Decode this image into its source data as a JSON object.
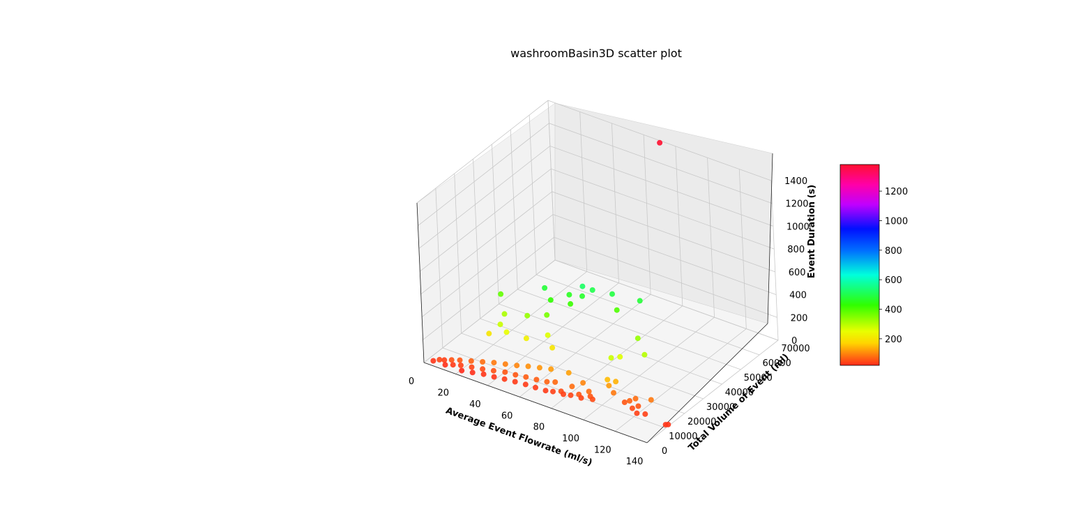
{
  "chart_data": {
    "type": "scatter",
    "projection": "3d",
    "title": "washroomBasin3D scatter plot",
    "xlabel": "Average Event Flowrate (ml/s)",
    "ylabel": "Total Volume of Event (ml)",
    "zlabel": "Event Duration (s)",
    "xlim": [
      0,
      140
    ],
    "ylim": [
      0,
      70000
    ],
    "zlim": [
      0,
      1400
    ],
    "xticks": [
      "0",
      "20",
      "40",
      "60",
      "80",
      "100",
      "120",
      "140"
    ],
    "yticks": [
      "0",
      "10000",
      "20000",
      "30000",
      "40000",
      "50000",
      "60000",
      "70000"
    ],
    "zticks": [
      "0",
      "200",
      "400",
      "600",
      "800",
      "1000",
      "1200",
      "1400"
    ],
    "grid": true,
    "colormap": "hsv",
    "colorbar": {
      "ticks": [
        "200",
        "400",
        "600",
        "800",
        "1000",
        "1200"
      ],
      "range": [
        20,
        1380
      ],
      "colors": [
        "#ff2a1a",
        "#ffd400",
        "#e8ff00",
        "#30ff00",
        "#00ffdc",
        "#0070ff",
        "#0010ff",
        "#c000ff",
        "#ff00a8",
        "#ff1030"
      ]
    },
    "series": [
      {
        "points": [
          {
            "x": 5,
            "y": 800,
            "z": 30
          },
          {
            "x": 8,
            "y": 1600,
            "z": 45
          },
          {
            "x": 10,
            "y": 2500,
            "z": 40
          },
          {
            "x": 12,
            "y": 1200,
            "z": 25
          },
          {
            "x": 14,
            "y": 3000,
            "z": 55
          },
          {
            "x": 16,
            "y": 2000,
            "z": 35
          },
          {
            "x": 18,
            "y": 4000,
            "z": 60
          },
          {
            "x": 20,
            "y": 2800,
            "z": 40
          },
          {
            "x": 22,
            "y": 1500,
            "z": 20
          },
          {
            "x": 24,
            "y": 5000,
            "z": 70
          },
          {
            "x": 26,
            "y": 3500,
            "z": 45
          },
          {
            "x": 28,
            "y": 2200,
            "z": 25
          },
          {
            "x": 30,
            "y": 6000,
            "z": 80
          },
          {
            "x": 32,
            "y": 4200,
            "z": 50
          },
          {
            "x": 34,
            "y": 3000,
            "z": 30
          },
          {
            "x": 36,
            "y": 7000,
            "z": 90
          },
          {
            "x": 38,
            "y": 5000,
            "z": 55
          },
          {
            "x": 40,
            "y": 3500,
            "z": 30
          },
          {
            "x": 42,
            "y": 8000,
            "z": 95
          },
          {
            "x": 44,
            "y": 6000,
            "z": 60
          },
          {
            "x": 46,
            "y": 4000,
            "z": 35
          },
          {
            "x": 48,
            "y": 9000,
            "z": 100
          },
          {
            "x": 50,
            "y": 6500,
            "z": 60
          },
          {
            "x": 52,
            "y": 4500,
            "z": 35
          },
          {
            "x": 54,
            "y": 10000,
            "z": 110
          },
          {
            "x": 56,
            "y": 7000,
            "z": 65
          },
          {
            "x": 58,
            "y": 5000,
            "z": 35
          },
          {
            "x": 60,
            "y": 11000,
            "z": 115
          },
          {
            "x": 62,
            "y": 7500,
            "z": 65
          },
          {
            "x": 64,
            "y": 5200,
            "z": 35
          },
          {
            "x": 66,
            "y": 12000,
            "z": 120
          },
          {
            "x": 68,
            "y": 8000,
            "z": 70
          },
          {
            "x": 70,
            "y": 5500,
            "z": 35
          },
          {
            "x": 72,
            "y": 9000,
            "z": 75
          },
          {
            "x": 74,
            "y": 6000,
            "z": 40
          },
          {
            "x": 76,
            "y": 13000,
            "z": 125
          },
          {
            "x": 78,
            "y": 7000,
            "z": 50
          },
          {
            "x": 80,
            "y": 6500,
            "z": 40
          },
          {
            "x": 82,
            "y": 9500,
            "z": 80
          },
          {
            "x": 84,
            "y": 7000,
            "z": 45
          },
          {
            "x": 86,
            "y": 12000,
            "z": 100
          },
          {
            "x": 88,
            "y": 8000,
            "z": 60
          },
          {
            "x": 90,
            "y": 7500,
            "z": 45
          },
          {
            "x": 92,
            "y": 10000,
            "z": 80
          },
          {
            "x": 94,
            "y": 9000,
            "z": 60
          },
          {
            "x": 96,
            "y": 8500,
            "z": 50
          },
          {
            "x": 96,
            "y": 19000,
            "z": 280
          },
          {
            "x": 98,
            "y": 15000,
            "z": 150
          },
          {
            "x": 100,
            "y": 14000,
            "z": 120
          },
          {
            "x": 102,
            "y": 16000,
            "z": 140
          },
          {
            "x": 104,
            "y": 13000,
            "z": 90
          },
          {
            "x": 112,
            "y": 12000,
            "z": 60
          },
          {
            "x": 114,
            "y": 13000,
            "z": 70
          },
          {
            "x": 116,
            "y": 14500,
            "z": 80
          },
          {
            "x": 118,
            "y": 11000,
            "z": 50
          },
          {
            "x": 120,
            "y": 12500,
            "z": 60
          },
          {
            "x": 122,
            "y": 10000,
            "z": 40
          },
          {
            "x": 124,
            "y": 16000,
            "z": 90
          },
          {
            "x": 126,
            "y": 11000,
            "z": 40
          },
          {
            "x": 140,
            "y": 10000,
            "z": 30
          },
          {
            "x": 141,
            "y": 10500,
            "z": 30
          },
          {
            "x": 30,
            "y": 16000,
            "z": 280
          },
          {
            "x": 35,
            "y": 15000,
            "z": 250
          },
          {
            "x": 25,
            "y": 14000,
            "z": 200
          },
          {
            "x": 45,
            "y": 17000,
            "z": 220
          },
          {
            "x": 55,
            "y": 20000,
            "z": 260
          },
          {
            "x": 60,
            "y": 18000,
            "z": 200
          },
          {
            "x": 40,
            "y": 22000,
            "z": 330
          },
          {
            "x": 50,
            "y": 24000,
            "z": 360
          },
          {
            "x": 42,
            "y": 30000,
            "z": 480
          },
          {
            "x": 48,
            "y": 28000,
            "z": 430
          },
          {
            "x": 55,
            "y": 32000,
            "z": 460
          },
          {
            "x": 60,
            "y": 35000,
            "z": 520
          },
          {
            "x": 62,
            "y": 33000,
            "z": 470
          },
          {
            "x": 65,
            "y": 36000,
            "z": 500
          },
          {
            "x": 58,
            "y": 30000,
            "z": 420
          },
          {
            "x": 75,
            "y": 38000,
            "z": 490
          },
          {
            "x": 80,
            "y": 36000,
            "z": 400
          },
          {
            "x": 90,
            "y": 40000,
            "z": 480
          },
          {
            "x": 20,
            "y": 25000,
            "z": 380
          },
          {
            "x": 28,
            "y": 20000,
            "z": 310
          },
          {
            "x": 110,
            "y": 25000,
            "z": 300
          },
          {
            "x": 98,
            "y": 22000,
            "z": 260
          },
          {
            "x": 100,
            "y": 30000,
            "z": 330
          },
          {
            "x": 70,
            "y": 70000,
            "z": 1380
          }
        ]
      }
    ]
  }
}
